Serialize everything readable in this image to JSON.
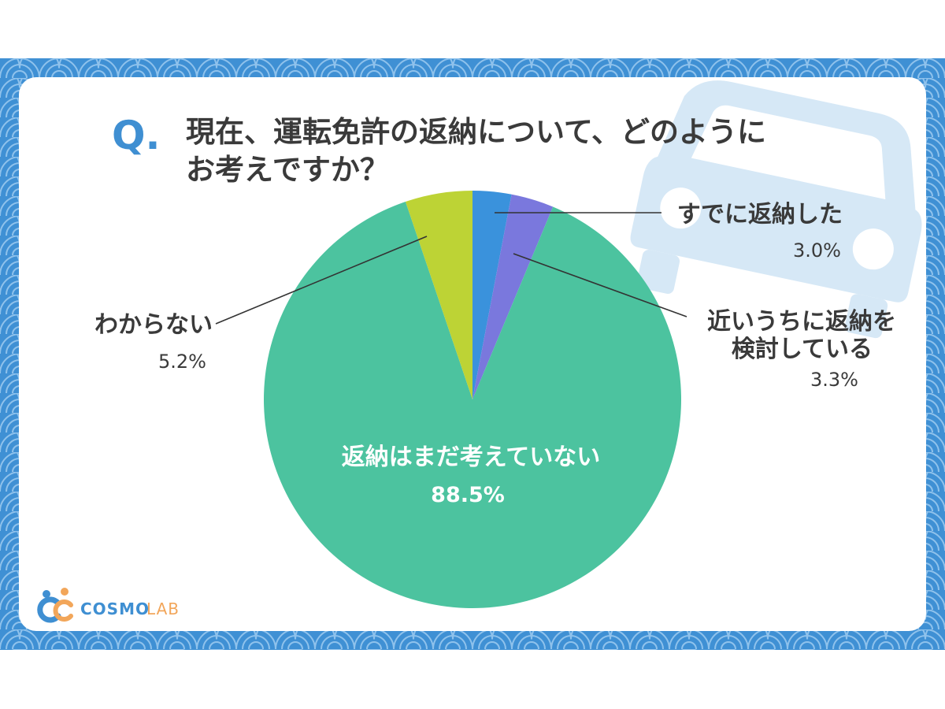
{
  "question": {
    "marker": "Q.",
    "line1": "現在、運転免許の返納について、どのように",
    "line2": "お考えですか？"
  },
  "brand": {
    "name_part1": "COSMO",
    "name_part2": "LAB"
  },
  "colors": {
    "frame": "#3f90d4",
    "wave": "#8fc2ec",
    "panel": "#ffffff",
    "question_marker": "#3f8fd2",
    "text": "#3a3a3a",
    "car": "#d6e8f6",
    "leader": "#333333"
  },
  "chart_data": {
    "type": "pie",
    "title": "",
    "start_angle_deg": 0,
    "direction": "clockwise",
    "slices": [
      {
        "label": "すでに返納した",
        "label_lines": [
          "すでに返納した"
        ],
        "value": 3.0,
        "display": "3.0%",
        "color": "#3a92dc"
      },
      {
        "label": "近いうちに返納を検討している",
        "label_lines": [
          "近いうちに返納を",
          "検討している"
        ],
        "value": 3.3,
        "display": "3.3%",
        "color": "#7a78dd"
      },
      {
        "label": "返納はまだ考えていない",
        "label_lines": [
          "返納はまだ考えていない"
        ],
        "value": 88.5,
        "display": "88.5%",
        "color": "#4cc39f"
      },
      {
        "label": "わからない",
        "label_lines": [
          "わからない"
        ],
        "value": 5.2,
        "display": "5.2%",
        "color": "#bdd335"
      }
    ]
  }
}
